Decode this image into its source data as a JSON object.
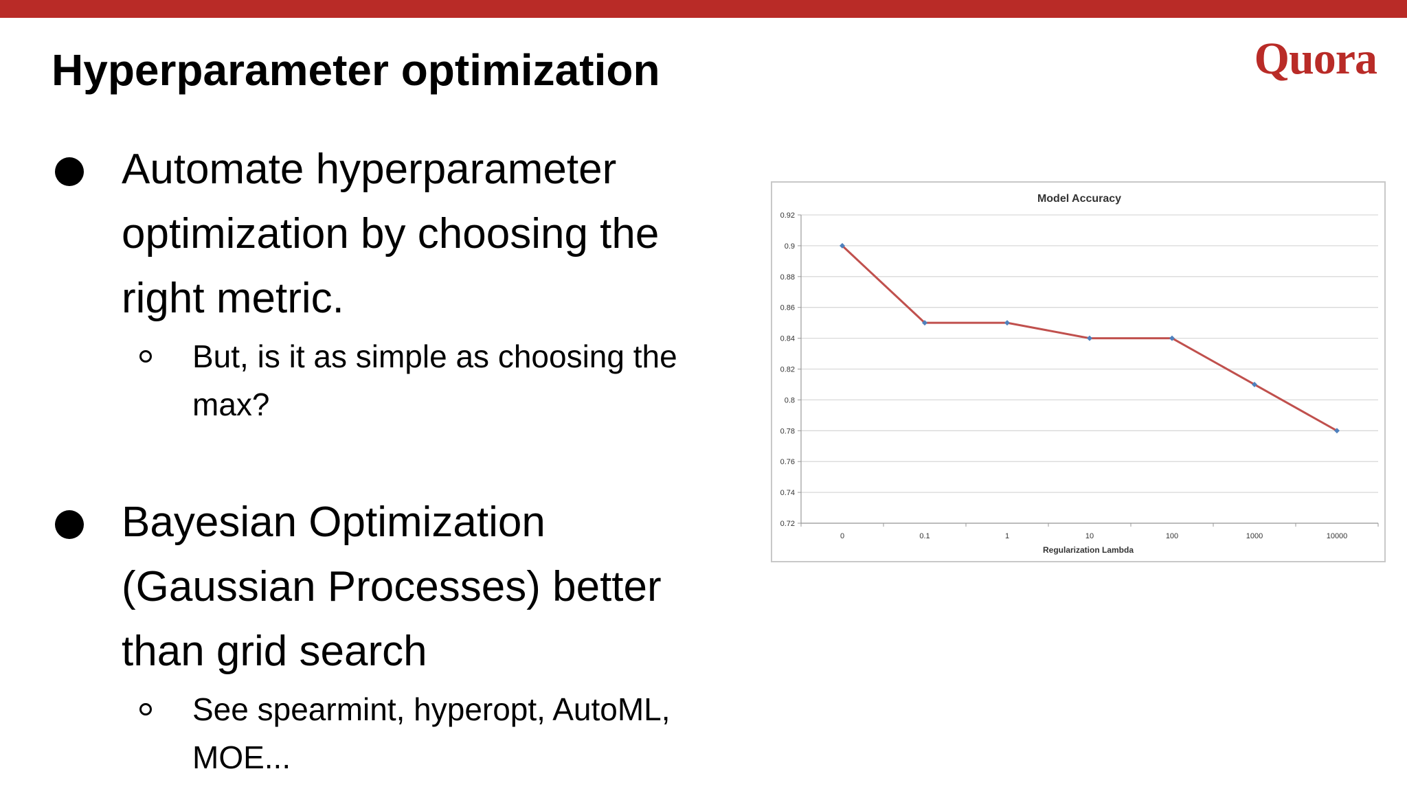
{
  "slide": {
    "title": "Hyperparameter optimization",
    "logo_text": "Quora",
    "colors": {
      "brand": "#b92b27",
      "line": "#c0504d",
      "marker": "#4f81bd",
      "gridline": "#d9d9d9",
      "text": "#000000"
    }
  },
  "bullets": [
    {
      "text": "Automate hyperparameter optimization by choosing the right metric.",
      "lines": [
        "Automate hyperparameter",
        "optimization by choosing the",
        "right metric."
      ],
      "sub": {
        "text": "But, is it as simple as choosing the max?",
        "lines": [
          "But, is it as simple as choosing the",
          "max?"
        ]
      }
    },
    {
      "text": "Bayesian Optimization (Gaussian Processes) better than grid search",
      "lines": [
        "Bayesian Optimization",
        "(Gaussian Processes) better",
        "than grid search"
      ],
      "sub": {
        "text": "See spearmint, hyperopt, AutoML, MOE...",
        "lines": [
          "See spearmint, hyperopt, AutoML,",
          "MOE..."
        ]
      }
    }
  ],
  "chart_data": {
    "type": "line",
    "title": "Model Accuracy",
    "xlabel": "Regularization Lambda",
    "ylabel": "",
    "categories": [
      "0",
      "0.1",
      "1",
      "10",
      "100",
      "1000",
      "10000"
    ],
    "series": [
      {
        "values": [
          0.9,
          0.85,
          0.85,
          0.84,
          0.84,
          0.81,
          0.78
        ]
      }
    ],
    "ylim": [
      0.72,
      0.92
    ],
    "yticks": [
      "0.72",
      "0.74",
      "0.76",
      "0.78",
      "0.8",
      "0.82",
      "0.84",
      "0.86",
      "0.88",
      "0.9",
      "0.92"
    ],
    "grid": true,
    "legend": "none",
    "marker": "diamond"
  }
}
